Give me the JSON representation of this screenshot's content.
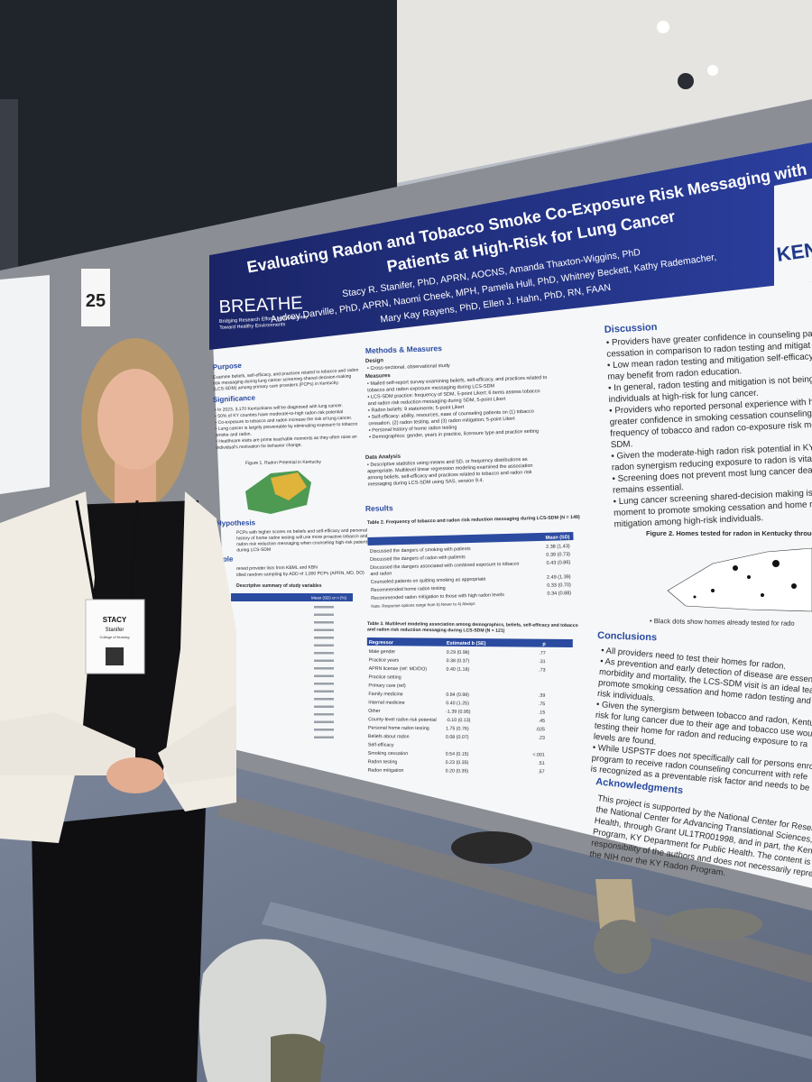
{
  "board_number": "25",
  "badge": {
    "name": "STACY",
    "surname": "Stanifer",
    "unit": "College of Nursing"
  },
  "poster": {
    "title": [
      "Evaluating Radon and Tobacco Smoke Co-Exposure Risk Messaging with",
      "Patients at High-Risk for Lung Cancer"
    ],
    "authors": [
      "Stacy R. Stanifer, PhD, APRN, AOCNS, Amanda Thaxton-Wiggins, PhD",
      "Audrey Darville, PhD, APRN, Naomi Cheek, MPH, Pamela Hull, PhD, Whitney Beckett, Kathy Rademacher,",
      "Mary Kay Rayens, PhD, Ellen J. Hahn, PhD, RN, FAAN"
    ],
    "logo": "BREATHE",
    "tagline": [
      "Bridging Research Efforts and Advocacy",
      "Toward Healthy Environments"
    ],
    "university": "KEN",
    "purpose": {
      "heading": "Purpose",
      "text": [
        "Examine beliefs, self-efficacy, and practices related to tobacco and radon",
        "risk messaging during lung cancer screening shared decision-making",
        "(LCS-SDM) among primary care providers (PCPs) in Kentucky."
      ]
    },
    "significance": {
      "heading": "Significance",
      "text": [
        "• In 2023, 3,170 Kentuckians will be diagnosed with lung cancer.",
        "• 50% of KY counties have moderate-to-high radon risk potential",
        "• Co-exposure to tobacco and radon increase the risk of lung cancer.",
        "• Lung cancer is largely preventable by eliminating exposure to tobacco",
        "  smoke and radon.",
        "• Healthcare visits are prime teachable moments as they often raise an",
        "  individual's motivation for behavior change."
      ]
    },
    "figure_1": "Figure 1. Radon Potential in Kentucky",
    "hypothesis": {
      "heading": "Hypothesis",
      "text": [
        "PCPs with higher scores on beliefs and self-efficacy and personal",
        "history of home radon testing will use more proactive tobacco and",
        "radon risk reduction messaging when counseling high-risk patients",
        "during LCS-SDM"
      ]
    },
    "sample": {
      "heading": "Sample",
      "text": [
        "rened provider lists from KBML and KBN",
        "tified random sampling by ADD of 1,000 PCPs (APRN, MD, DO)"
      ]
    },
    "table_1": {
      "title": "Descriptive summary of study variables",
      "column": "Mean (SD) or n (%)"
    },
    "methods": {
      "heading": "Methods & Measures",
      "design_heading": "Design",
      "design": [
        "• Cross-sectional, observational study"
      ],
      "measures_heading": "Measures",
      "measures": [
        "• Mailed self-report survey examining beliefs, self-efficacy, and practices related to",
        "  tobacco and radon exposure messaging during LCS-SDM",
        "  ▪ LCS-SDM practice: frequency of SDM, 5-point Likert; 6 items assess tobacco",
        "    and radon risk reduction messaging during SDM, 5-point Likert",
        "  ▪ Radon beliefs: 9 statements; 5-point Likert",
        "  ▪ Self-efficacy: ability, resources, ease of counseling patients on (1) tobacco",
        "    cessation, (2) radon testing, and (3) radon mitigation; 5-point Likert",
        "  ▪ Personal history of home radon testing",
        "  ▪ Demographics: gender, years in practice, licensure type and practice setting"
      ],
      "analysis_heading": "Data Analysis",
      "analysis": [
        "• Descriptive statistics using means and SD, or frequency distributions as",
        "  appropriate. Multilevel linear regression modeling examined the association",
        "  among beliefs, self-efficacy and practices related to tobacco and radon risk",
        "  messaging during LCS-SDM using SAS, version 9.4."
      ]
    },
    "results_heading": "Results",
    "table_2": {
      "title": "Table 2. Frequency of tobacco and radon risk reduction messaging during LCS-SDM (N = 149)",
      "column": "Mean (SD)",
      "rows": [
        {
          "label": [
            "Discussed the dangers of smoking with patients"
          ],
          "value": "2.38 (1.43)"
        },
        {
          "label": [
            "Discussed the dangers of radon with patients"
          ],
          "value": "0.39 (0.73)"
        },
        {
          "label": [
            "Discussed the dangers associated with combined exposure to tobacco",
            "and radon"
          ],
          "value": "0.43 (0.86)"
        },
        {
          "label": [
            "Counseled patients on quitting smoking as appropriate"
          ],
          "value": "2.49 (1.39)"
        },
        {
          "label": [
            "Recommended home radon testing"
          ],
          "value": "0.33 (0.70)"
        },
        {
          "label": [
            "Recommended radon mitigation to those with high radon levels"
          ],
          "value": "0.34 (0.88)"
        }
      ],
      "note": "Note. Response options range from 0) Never to 4) Always"
    },
    "table_3": {
      "title": [
        "Table 3. Multilevel modeling association among demographics, beliefs, self-efficacy and tobacco",
        "and radon risk reduction messaging during LCS-SDM (N = 121)"
      ],
      "columns": [
        "Regressor",
        "Estimated b (SE)",
        "p"
      ],
      "rows": [
        [
          "Male gender",
          "0.29 (0.98)",
          ".77"
        ],
        [
          "Practice years",
          "0.38 (0.37)",
          ".31"
        ],
        [
          "APRN license (ref: MD/DO)",
          "0.40 (1.18)",
          ".73"
        ],
        [
          "Practice setting"
        ],
        [
          "   Primary care (ref)"
        ],
        [
          "   Family medicine",
          "0.84 (0.98)",
          ".39"
        ],
        [
          "   Internal medicine",
          "0.40 (1.25)",
          ".75"
        ],
        [
          "   Other",
          "-1.39 (0.95)",
          ".15"
        ],
        [
          "County-level radon risk potential",
          "-0.10 (0.13)",
          ".45"
        ],
        [
          "Personal home radon testing",
          "1.75 (0.76)",
          ".025"
        ],
        [
          "Beliefs about radon",
          "0.08 (0.07)",
          ".23"
        ],
        [
          "Self-efficacy"
        ],
        [
          "   Smoking cessation",
          "0.54 (0.15)",
          "<.001"
        ],
        [
          "   Radon testing",
          "0.23 (0.35)",
          ".51"
        ],
        [
          "   Radon mitigation",
          "0.20 (0.35)",
          ".57"
        ]
      ]
    },
    "discussion": {
      "heading": "Discussion",
      "text": [
        "• Providers have greater confidence in counseling pat",
        "  cessation in comparison to radon testing and mitigat",
        "• Low mean radon testing and mitigation self-efficacy s",
        "  may benefit from radon education.",
        "• In general, radon testing and mitigation is not being c",
        "  individuals at high-risk for lung cancer.",
        "• Providers who reported personal experience with hor",
        "  greater confidence in smoking cessation counseling r",
        "  frequency of tobacco and radon co-exposure risk mes",
        "  SDM.",
        "• Given the moderate-high radon risk potential in KY an",
        "  radon synergism reducing exposure to radon is vital.",
        "• Screening does not prevent most lung cancer deaths;",
        "  remains essential.",
        "• Lung cancer screening shared-decision making is an i",
        "  moment to promote smoking cessation and home rado",
        "  mitigation among high-risk individuals."
      ]
    },
    "figure_2": "Figure 2. Homes tested for radon in Kentucky throug",
    "figure_2_note": "• Black dots show homes already tested for rado",
    "conclusions": {
      "heading": "Conclusions",
      "text": [
        "• All providers need to test their homes for radon.",
        "• As prevention and early detection of disease are essenti",
        "  morbidity and mortality, the LCS-SDM visit is an ideal tea",
        "  promote smoking cessation and home radon testing and",
        "  risk individuals.",
        "• Given the synergism between tobacco and radon, Kentu",
        "  risk for lung cancer due to their age and tobacco use wou",
        "  testing their home for radon and reducing exposure to ra",
        "  levels are found.",
        "• While USPSTF does not specifically call for persons enro",
        "  program to receive radon counseling concurrent with refe",
        "  is recognized as a preventable risk factor and needs to be"
      ]
    },
    "acknowledgments": {
      "heading": "Acknowledgments",
      "text": [
        "This project is supported by the National Center for Research",
        "the National Center for Advancing Translational Sciences, N",
        "Health, through Grant UL1TR001998, and in part, the Kentu",
        "Program, KY Department for Public Health. The content is so",
        "responsibility of the authors and does not necessarily repres",
        "the NIH nor the KY Radon Program."
      ]
    }
  }
}
